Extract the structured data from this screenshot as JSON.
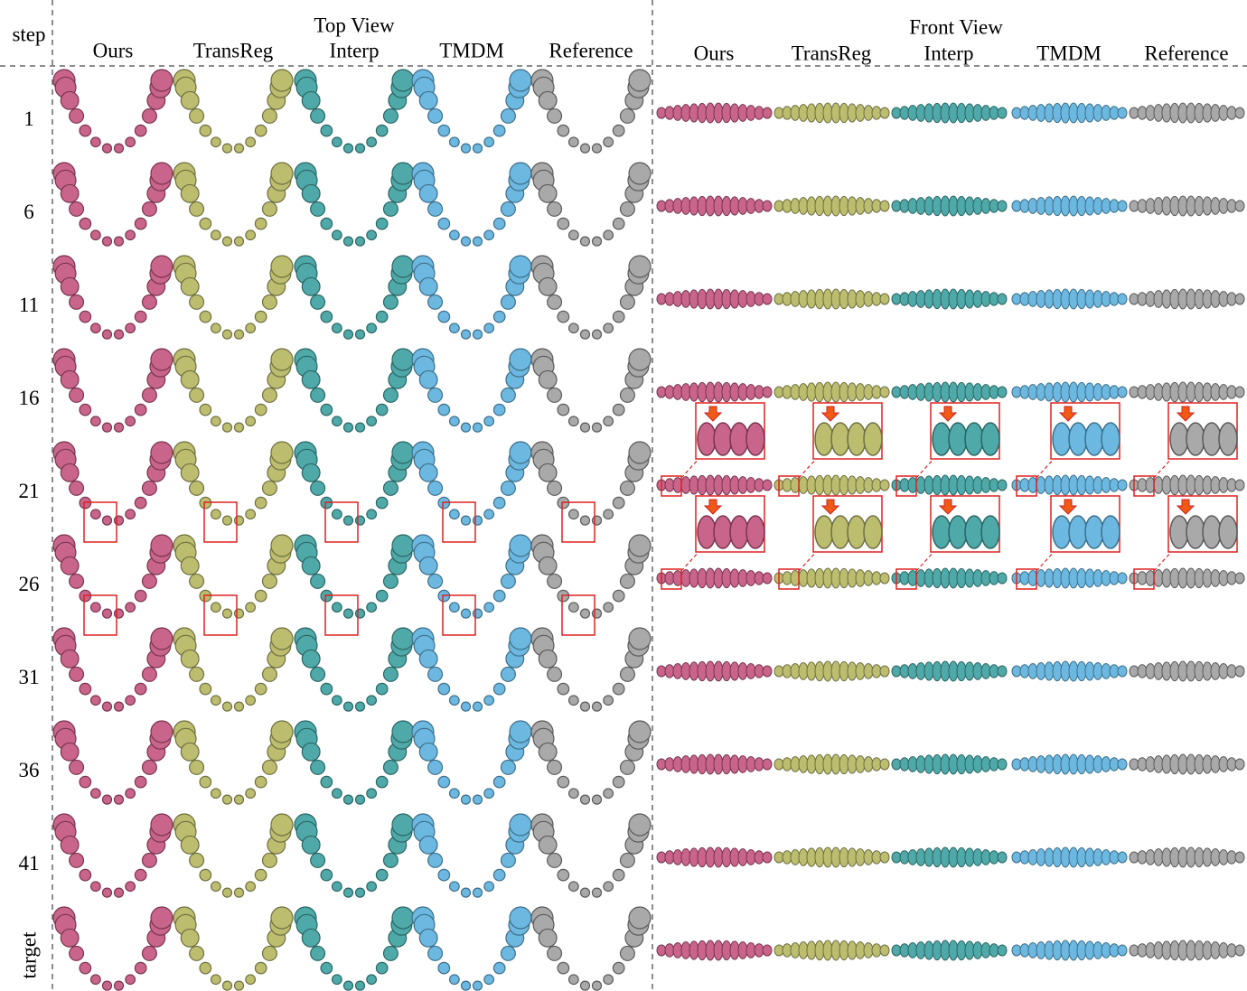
{
  "header": {
    "step": "step",
    "top_view": "Top View",
    "front_view": "Front View"
  },
  "top_view": {
    "methods": [
      "Ours",
      "TransReg",
      "Interp",
      "TMDM",
      "Reference"
    ]
  },
  "front_view": {
    "methods": [
      "Ours",
      "TransReg",
      "Interp",
      "TMDM",
      "Reference"
    ]
  },
  "steps": [
    "1",
    "6",
    "11",
    "16",
    "21",
    "26",
    "31",
    "36",
    "41",
    "target"
  ]
}
